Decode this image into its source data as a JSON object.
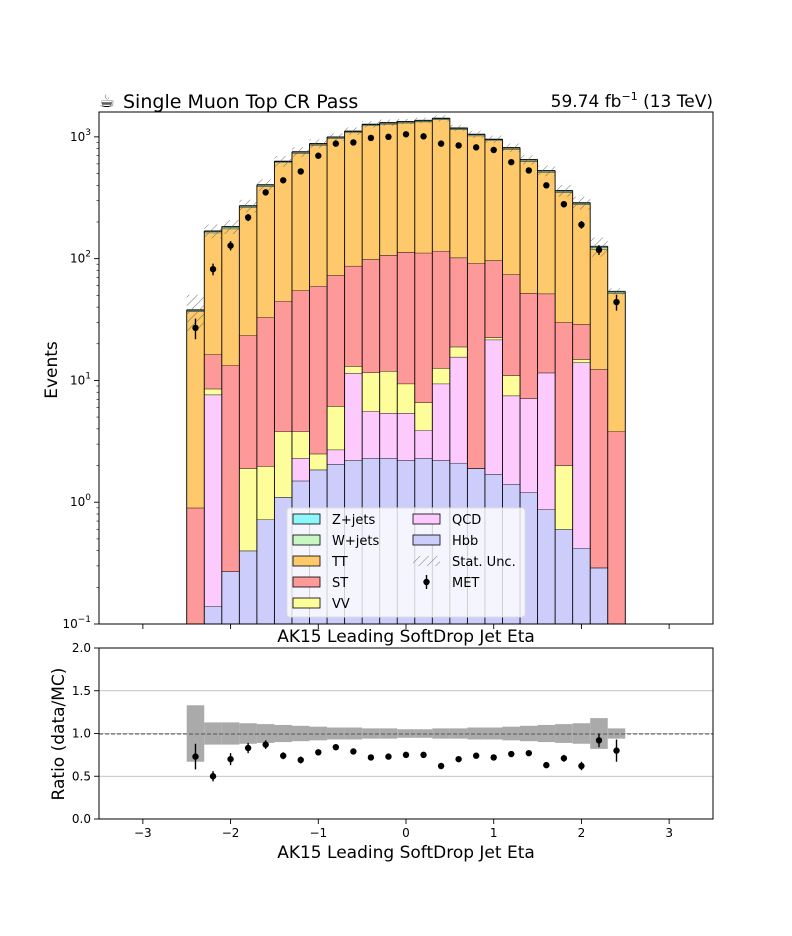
{
  "header": {
    "title_icon": "coffee-cup-icon",
    "title_glyph": "☕",
    "title": "Single Muon Top CR Pass",
    "lumi_prefix": "59.74 fb",
    "lumi_exp": "−1",
    "lumi_suffix": " (13 TeV)"
  },
  "top_panel": {
    "ylabel": "Events",
    "xlabel": "AK15 Leading SoftDrop Jet Eta",
    "ytick_exps": [
      "−1",
      "0",
      "1",
      "2",
      "3"
    ]
  },
  "bottom_panel": {
    "ylabel": "Ratio (data/MC)",
    "xlabel": "AK15 Leading SoftDrop Jet Eta",
    "yticks": [
      "0.0",
      "0.5",
      "1.0",
      "1.5",
      "2.0"
    ],
    "xticks": [
      "−3",
      "−2",
      "−1",
      "0",
      "1",
      "2",
      "3"
    ]
  },
  "legend": {
    "labels": [
      "Z+jets",
      "W+jets",
      "TT",
      "ST",
      "VV",
      "QCD",
      "Hbb",
      "Stat. Unc.",
      "MET"
    ]
  },
  "colors": {
    "zjets": "#8ff7fb",
    "wjets": "#c8f7c3",
    "tt": "#fdc96a",
    "st": "#fd9a99",
    "vv": "#fdfd9a",
    "qcd": "#fccafc",
    "hbb": "#cdcdfc",
    "unc_band": "#aaaaaa",
    "data": "#000000"
  },
  "chart_data": [
    {
      "type": "bar",
      "stacked": true,
      "yscale": "log",
      "xlim": [
        -3.5,
        3.5
      ],
      "ylim": [
        0.1,
        1600
      ],
      "xlabel": "AK15 Leading SoftDrop Jet Eta",
      "ylabel": "Events",
      "bin_edges": [
        -2.5,
        -2.3,
        -2.1,
        -1.9,
        -1.7,
        -1.5,
        -1.3,
        -1.1,
        -0.9,
        -0.7,
        -0.5,
        -0.3,
        -0.1,
        0.1,
        0.3,
        0.5,
        0.7,
        0.9,
        1.1,
        1.3,
        1.5,
        1.7,
        1.9,
        2.1,
        2.3,
        2.5
      ],
      "series": [
        {
          "name": "Hbb",
          "values": [
            0.0,
            0.14,
            0.27,
            0.4,
            0.72,
            1.1,
            1.5,
            1.85,
            2.05,
            2.2,
            2.3,
            2.3,
            2.2,
            2.3,
            2.2,
            2.1,
            1.9,
            1.7,
            1.4,
            1.2,
            0.87,
            0.6,
            0.42,
            0.29,
            0.0
          ]
        },
        {
          "name": "QCD",
          "values": [
            0.0,
            7.5,
            0.0,
            0.0,
            0.0,
            0.0,
            0.8,
            0.0,
            0.65,
            9.3,
            3.3,
            3.1,
            3.2,
            1.6,
            7.2,
            13.5,
            0.0,
            19.9,
            6.1,
            5.9,
            10.7,
            0.0,
            13.6,
            0.0,
            0.0
          ]
        },
        {
          "name": "VV",
          "values": [
            0.0,
            0.9,
            0.0,
            1.5,
            1.25,
            2.7,
            1.5,
            0.65,
            3.45,
            1.6,
            6.0,
            6.5,
            4.0,
            2.7,
            3.2,
            3.3,
            0.0,
            0.9,
            3.5,
            0.0,
            0.0,
            1.4,
            0.9,
            0.0,
            0.0
          ]
        },
        {
          "name": "ST",
          "values": [
            0.9,
            7.8,
            13.0,
            21.5,
            31.0,
            41.0,
            51.0,
            57.0,
            67.0,
            74.0,
            87.0,
            95.0,
            104.0,
            105.0,
            103.0,
            83.0,
            90.0,
            74.0,
            63.0,
            45.0,
            40.0,
            28.0,
            14.0,
            12.0,
            3.8
          ]
        },
        {
          "name": "TT",
          "values": [
            36.0,
            147.0,
            163.0,
            240.0,
            360.0,
            570.0,
            680.0,
            800.0,
            900.0,
            1000.0,
            1140.0,
            1170.0,
            1190.0,
            1220.0,
            1270.0,
            1050.0,
            930.0,
            835.0,
            720.0,
            580.0,
            460.0,
            320.0,
            250.0,
            108.0,
            48.0
          ]
        },
        {
          "name": "W+jets",
          "values": [
            0.8,
            4.0,
            5.0,
            6.0,
            8.0,
            12.0,
            14.0,
            16.0,
            18.0,
            20.0,
            22.0,
            22.0,
            24.0,
            24.0,
            25.0,
            22.0,
            20.0,
            18.0,
            16.0,
            14.0,
            12.0,
            9.0,
            6.0,
            4.0,
            1.5
          ]
        },
        {
          "name": "Z+jets",
          "values": [
            0.3,
            1.5,
            2.0,
            2.5,
            3.5,
            5.0,
            6.0,
            7.0,
            8.0,
            9.0,
            10.0,
            10.0,
            11.0,
            11.0,
            11.0,
            10.0,
            9.0,
            8.0,
            7.0,
            6.0,
            5.0,
            4.0,
            3.0,
            2.0,
            0.6
          ]
        }
      ],
      "uncertainty": {
        "name": "Stat. Unc.",
        "rel_err": [
          0.33,
          0.13,
          0.13,
          0.12,
          0.11,
          0.1,
          0.09,
          0.08,
          0.07,
          0.07,
          0.06,
          0.06,
          0.05,
          0.05,
          0.06,
          0.06,
          0.07,
          0.07,
          0.08,
          0.09,
          0.1,
          0.11,
          0.12,
          0.18,
          0.06
        ]
      },
      "data": {
        "name": "MET",
        "x": [
          -2.4,
          -2.2,
          -2.0,
          -1.8,
          -1.6,
          -1.4,
          -1.2,
          -1.0,
          -0.8,
          -0.6,
          -0.4,
          -0.2,
          0.0,
          0.2,
          0.4,
          0.6,
          0.8,
          1.0,
          1.2,
          1.4,
          1.6,
          1.8,
          2.0,
          2.2,
          2.4
        ],
        "y": [
          27,
          82,
          128,
          218,
          350,
          440,
          520,
          700,
          880,
          900,
          980,
          1000,
          1050,
          1010,
          880,
          850,
          820,
          780,
          620,
          530,
          400,
          280,
          190,
          118,
          44
        ],
        "yerr": [
          5.2,
          9.0,
          11.3,
          14.8,
          18.7,
          21.0,
          22.8,
          26.5,
          29.7,
          30.0,
          31.3,
          31.6,
          32.4,
          31.8,
          29.7,
          29.2,
          28.6,
          27.9,
          24.9,
          23.0,
          20.0,
          16.7,
          13.8,
          10.9,
          6.6
        ]
      }
    },
    {
      "type": "scatter",
      "xlim": [
        -3.5,
        3.5
      ],
      "ylim": [
        0.0,
        2.0
      ],
      "xlabel": "AK15 Leading SoftDrop Jet Eta",
      "ylabel": "Ratio (data/MC)",
      "grid": "horizontal",
      "reference_line": 1.0,
      "x": [
        -2.4,
        -2.2,
        -2.0,
        -1.8,
        -1.6,
        -1.4,
        -1.2,
        -1.0,
        -0.8,
        -0.6,
        -0.4,
        -0.2,
        0.0,
        0.2,
        0.4,
        0.6,
        0.8,
        1.0,
        1.2,
        1.4,
        1.6,
        1.8,
        2.0,
        2.2,
        2.4
      ],
      "y": [
        0.73,
        0.5,
        0.7,
        0.83,
        0.87,
        0.74,
        0.69,
        0.78,
        0.84,
        0.79,
        0.72,
        0.73,
        0.75,
        0.75,
        0.62,
        0.7,
        0.74,
        0.72,
        0.76,
        0.77,
        0.63,
        0.71,
        0.62,
        0.92,
        0.8
      ],
      "yerr": [
        0.15,
        0.06,
        0.07,
        0.06,
        0.05,
        0.04,
        0.04,
        0.03,
        0.03,
        0.03,
        0.02,
        0.02,
        0.02,
        0.02,
        0.02,
        0.02,
        0.03,
        0.03,
        0.03,
        0.03,
        0.03,
        0.04,
        0.05,
        0.08,
        0.13
      ]
    }
  ]
}
